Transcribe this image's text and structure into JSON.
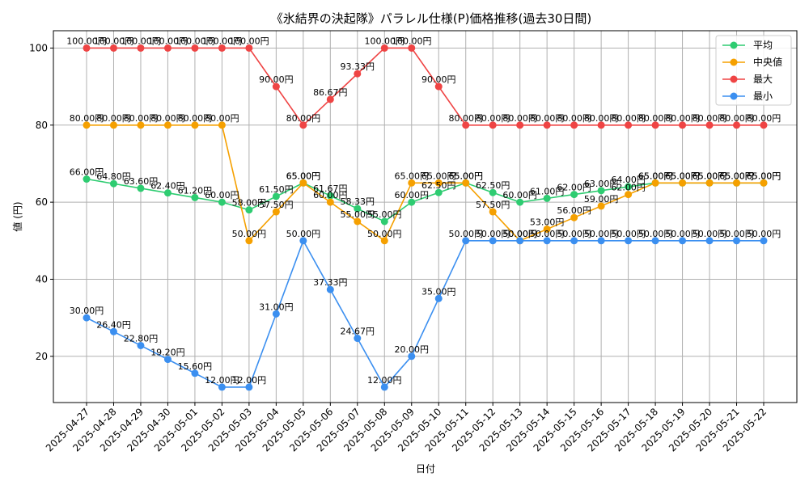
{
  "chart_data": {
    "type": "line",
    "title": "《氷結界の決起隊》パラレル仕様(P)価格推移(過去30日間)",
    "xlabel": "日付",
    "ylabel": "値 (円)",
    "grid": true,
    "legend_position": "top-right",
    "ylim": [
      8,
      104.5
    ],
    "yticks": [
      20,
      40,
      60,
      80,
      100
    ],
    "value_suffix": "円",
    "categories": [
      "2025-04-27",
      "2025-04-28",
      "2025-04-29",
      "2025-04-30",
      "2025-05-01",
      "2025-05-02",
      "2025-05-03",
      "2025-05-04",
      "2025-05-05",
      "2025-05-06",
      "2025-05-07",
      "2025-05-08",
      "2025-05-09",
      "2025-05-10",
      "2025-05-11",
      "2025-05-12",
      "2025-05-13",
      "2025-05-14",
      "2025-05-15",
      "2025-05-16",
      "2025-05-17",
      "2025-05-18",
      "2025-05-19",
      "2025-05-20",
      "2025-05-21",
      "2025-05-22"
    ],
    "series": [
      {
        "name": "平均",
        "color": "#2ecc71",
        "values": [
          66.0,
          64.8,
          63.6,
          62.4,
          61.2,
          60.0,
          58.0,
          61.5,
          65.0,
          61.67,
          58.33,
          55.0,
          60.0,
          62.5,
          65.0,
          62.5,
          60.0,
          61.0,
          62.0,
          63.0,
          64.0,
          65.0,
          65.0,
          65.0,
          65.0,
          65.0
        ]
      },
      {
        "name": "中央値",
        "color": "#f5a000",
        "values": [
          80.0,
          80.0,
          80.0,
          80.0,
          80.0,
          80.0,
          50.0,
          57.5,
          65.0,
          60.0,
          55.0,
          50.0,
          65.0,
          65.0,
          65.0,
          57.5,
          50.0,
          53.0,
          56.0,
          59.0,
          62.0,
          65.0,
          65.0,
          65.0,
          65.0,
          65.0
        ]
      },
      {
        "name": "最大",
        "color": "#ef4444",
        "values": [
          100.0,
          100.0,
          100.0,
          100.0,
          100.0,
          100.0,
          100.0,
          90.0,
          80.0,
          86.67,
          93.33,
          100.0,
          100.0,
          90.0,
          80.0,
          80.0,
          80.0,
          80.0,
          80.0,
          80.0,
          80.0,
          80.0,
          80.0,
          80.0,
          80.0,
          80.0
        ]
      },
      {
        "name": "最小",
        "color": "#3b8ff0",
        "values": [
          30.0,
          26.4,
          22.8,
          19.2,
          15.6,
          12.0,
          12.0,
          31.0,
          50.0,
          37.33,
          24.67,
          12.0,
          20.0,
          35.0,
          50.0,
          50.0,
          50.0,
          50.0,
          50.0,
          50.0,
          50.0,
          50.0,
          50.0,
          50.0,
          50.0,
          50.0
        ]
      }
    ]
  }
}
